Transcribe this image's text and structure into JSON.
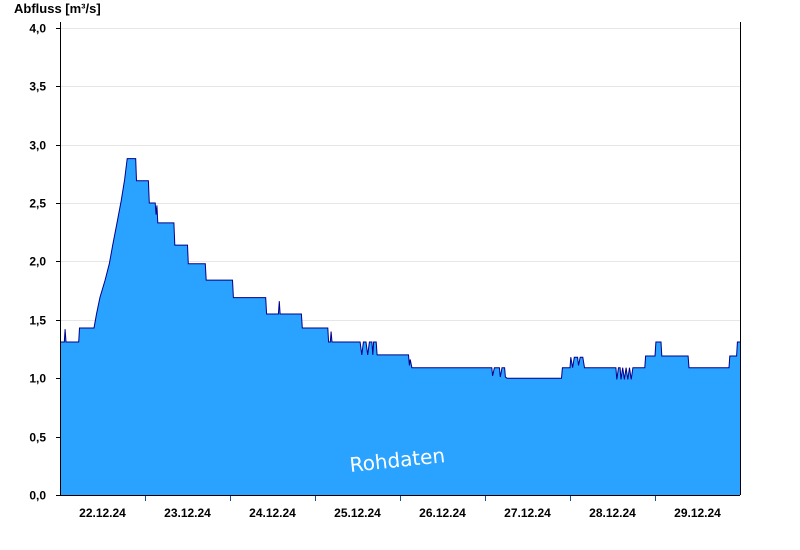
{
  "chart_data": {
    "type": "area",
    "ylabel": "Abfluss [m³/s]",
    "xlabel": "",
    "title": "",
    "ylim": [
      0,
      4.05
    ],
    "yticks": [
      0,
      0.5,
      1.0,
      1.5,
      2.0,
      2.5,
      3.0,
      3.5,
      4.0
    ],
    "ytick_labels": [
      "0,0",
      "0,5",
      "1,0",
      "1,5",
      "2,0",
      "2,5",
      "3,0",
      "3,5",
      "4,0"
    ],
    "xlim": [
      0,
      8
    ],
    "day_boundaries": [
      1,
      2,
      3,
      4,
      5,
      6,
      7
    ],
    "xtick_positions": [
      0.5,
      1.5,
      2.5,
      3.5,
      4.5,
      5.5,
      6.5,
      7.5
    ],
    "xtick_labels": [
      "22.12.24",
      "23.12.24",
      "24.12.24",
      "25.12.24",
      "26.12.24",
      "27.12.24",
      "28.12.24",
      "29.12.24"
    ],
    "watermark": "Rohdaten",
    "grid": true,
    "colors": {
      "fill": "#29a3ff",
      "line": "#00008b",
      "grid": "#e6e6e6",
      "day_line": "#1a4f8a"
    },
    "series": [
      {
        "points": [
          [
            0.0,
            1.31
          ],
          [
            0.05,
            1.31
          ],
          [
            0.06,
            1.42
          ],
          [
            0.07,
            1.31
          ],
          [
            0.22,
            1.31
          ],
          [
            0.23,
            1.43
          ],
          [
            0.4,
            1.43
          ],
          [
            0.43,
            1.55
          ],
          [
            0.47,
            1.69
          ],
          [
            0.53,
            1.84
          ],
          [
            0.58,
            1.98
          ],
          [
            0.62,
            2.14
          ],
          [
            0.67,
            2.33
          ],
          [
            0.72,
            2.52
          ],
          [
            0.76,
            2.7
          ],
          [
            0.79,
            2.88
          ],
          [
            0.89,
            2.88
          ],
          [
            0.9,
            2.69
          ],
          [
            1.04,
            2.69
          ],
          [
            1.05,
            2.5
          ],
          [
            1.12,
            2.5
          ],
          [
            1.13,
            2.4
          ],
          [
            1.14,
            2.48
          ],
          [
            1.15,
            2.33
          ],
          [
            1.34,
            2.33
          ],
          [
            1.35,
            2.14
          ],
          [
            1.5,
            2.14
          ],
          [
            1.51,
            1.98
          ],
          [
            1.71,
            1.98
          ],
          [
            1.72,
            1.84
          ],
          [
            2.03,
            1.84
          ],
          [
            2.04,
            1.69
          ],
          [
            2.42,
            1.69
          ],
          [
            2.43,
            1.55
          ],
          [
            2.57,
            1.55
          ],
          [
            2.58,
            1.66
          ],
          [
            2.59,
            1.55
          ],
          [
            2.84,
            1.55
          ],
          [
            2.85,
            1.43
          ],
          [
            3.15,
            1.43
          ],
          [
            3.16,
            1.31
          ],
          [
            3.18,
            1.31
          ],
          [
            3.19,
            1.4
          ],
          [
            3.2,
            1.31
          ],
          [
            3.53,
            1.31
          ],
          [
            3.55,
            1.2
          ],
          [
            3.57,
            1.31
          ],
          [
            3.6,
            1.31
          ],
          [
            3.62,
            1.2
          ],
          [
            3.64,
            1.31
          ],
          [
            3.67,
            1.31
          ],
          [
            3.68,
            1.2
          ],
          [
            3.69,
            1.31
          ],
          [
            3.72,
            1.31
          ],
          [
            3.73,
            1.2
          ],
          [
            4.1,
            1.2
          ],
          [
            4.11,
            1.11
          ],
          [
            4.12,
            1.16
          ],
          [
            4.14,
            1.09
          ],
          [
            5.08,
            1.09
          ],
          [
            5.09,
            1.02
          ],
          [
            5.11,
            1.09
          ],
          [
            5.17,
            1.09
          ],
          [
            5.18,
            1.01
          ],
          [
            5.2,
            1.09
          ],
          [
            5.23,
            1.09
          ],
          [
            5.24,
            1.01
          ],
          [
            5.26,
            1.0
          ],
          [
            5.9,
            1.0
          ],
          [
            5.91,
            1.09
          ],
          [
            6.0,
            1.09
          ],
          [
            6.01,
            1.18
          ],
          [
            6.03,
            1.09
          ],
          [
            6.05,
            1.18
          ],
          [
            6.09,
            1.18
          ],
          [
            6.1,
            1.11
          ],
          [
            6.12,
            1.18
          ],
          [
            6.15,
            1.18
          ],
          [
            6.17,
            1.09
          ],
          [
            6.54,
            1.09
          ],
          [
            6.55,
            0.99
          ],
          [
            6.57,
            1.09
          ],
          [
            6.59,
            1.09
          ],
          [
            6.6,
            0.99
          ],
          [
            6.62,
            1.09
          ],
          [
            6.64,
            0.99
          ],
          [
            6.66,
            1.09
          ],
          [
            6.68,
            0.99
          ],
          [
            6.7,
            1.09
          ],
          [
            6.72,
            0.99
          ],
          [
            6.74,
            1.09
          ],
          [
            6.88,
            1.09
          ],
          [
            6.89,
            1.19
          ],
          [
            7.0,
            1.19
          ],
          [
            7.01,
            1.31
          ],
          [
            7.07,
            1.31
          ],
          [
            7.08,
            1.19
          ],
          [
            7.39,
            1.19
          ],
          [
            7.4,
            1.09
          ],
          [
            7.87,
            1.09
          ],
          [
            7.88,
            1.19
          ],
          [
            7.96,
            1.19
          ],
          [
            7.97,
            1.31
          ],
          [
            8.0,
            1.31
          ]
        ]
      }
    ]
  }
}
